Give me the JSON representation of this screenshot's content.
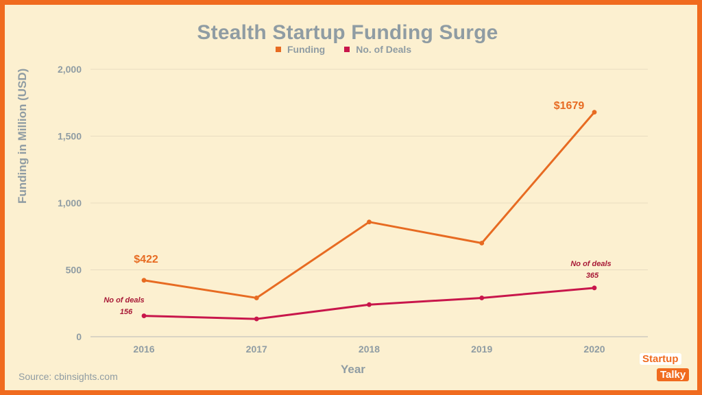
{
  "chart_data": {
    "type": "line",
    "title": "Stealth Startup Funding Surge",
    "xlabel": "Year",
    "ylabel": "Funding in Million (USD)",
    "categories": [
      "2016",
      "2017",
      "2018",
      "2019",
      "2020"
    ],
    "series": [
      {
        "name": "Funding",
        "values": [
          422,
          290,
          858,
          700,
          1679
        ],
        "color": "#e76b22"
      },
      {
        "name": "No. of Deals",
        "values": [
          156,
          133,
          240,
          290,
          365
        ],
        "color": "#c8164b"
      }
    ],
    "ylim": [
      0,
      2000
    ],
    "yticks": [
      0,
      500,
      1000,
      1500,
      2000
    ],
    "ytick_labels": [
      "0",
      "500",
      "1,000",
      "1,500",
      "2,000"
    ],
    "annotations": {
      "funding_2016": "$422",
      "funding_2020": "$1679",
      "deals_2016_line1": "No of deals",
      "deals_2016_line2": "156",
      "deals_2020_line1": "No of deals",
      "deals_2020_line2": "365"
    },
    "grid": true
  },
  "legend": {
    "funding_label": "Funding",
    "deals_label": "No. of Deals",
    "funding_color": "#e76b22",
    "deals_color": "#c8164b"
  },
  "footer": {
    "source": "Source: cbinsights.com"
  },
  "logo": {
    "top": "Startup",
    "bottom": "Talky"
  }
}
